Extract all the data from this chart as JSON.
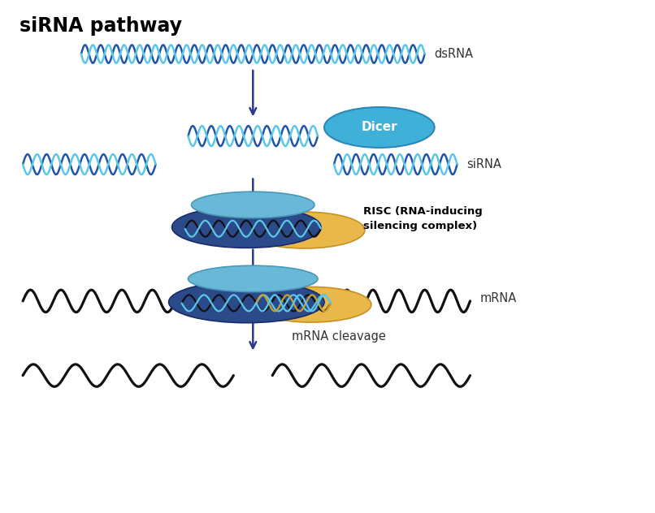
{
  "title": "siRNA pathway",
  "title_fontsize": 17,
  "title_fontweight": "bold",
  "bg_color": "#ffffff",
  "blue_light": "#5bc8e8",
  "blue_mid": "#3a8abf",
  "blue_dark": "#1a3a8a",
  "blue_risc_top": "#6ab8d8",
  "blue_risc_body": "#2a5a9a",
  "arrow_color": "#2a3a8a",
  "wave_blue1": "#3a7abf",
  "wave_blue2": "#7acce8",
  "wave_black": "#111111",
  "gold": "#e8b84a",
  "gold_edge": "#c89020",
  "white": "#ffffff",
  "label_dsRNA": "dsRNA",
  "label_siRNA": "siRNA",
  "label_mRNA": "mRNA",
  "label_mRNA_cleavage": "mRNA cleavage",
  "label_RISC": "RISC (RNA-inducing\nsilencing complex)",
  "label_Dicer": "Dicer"
}
